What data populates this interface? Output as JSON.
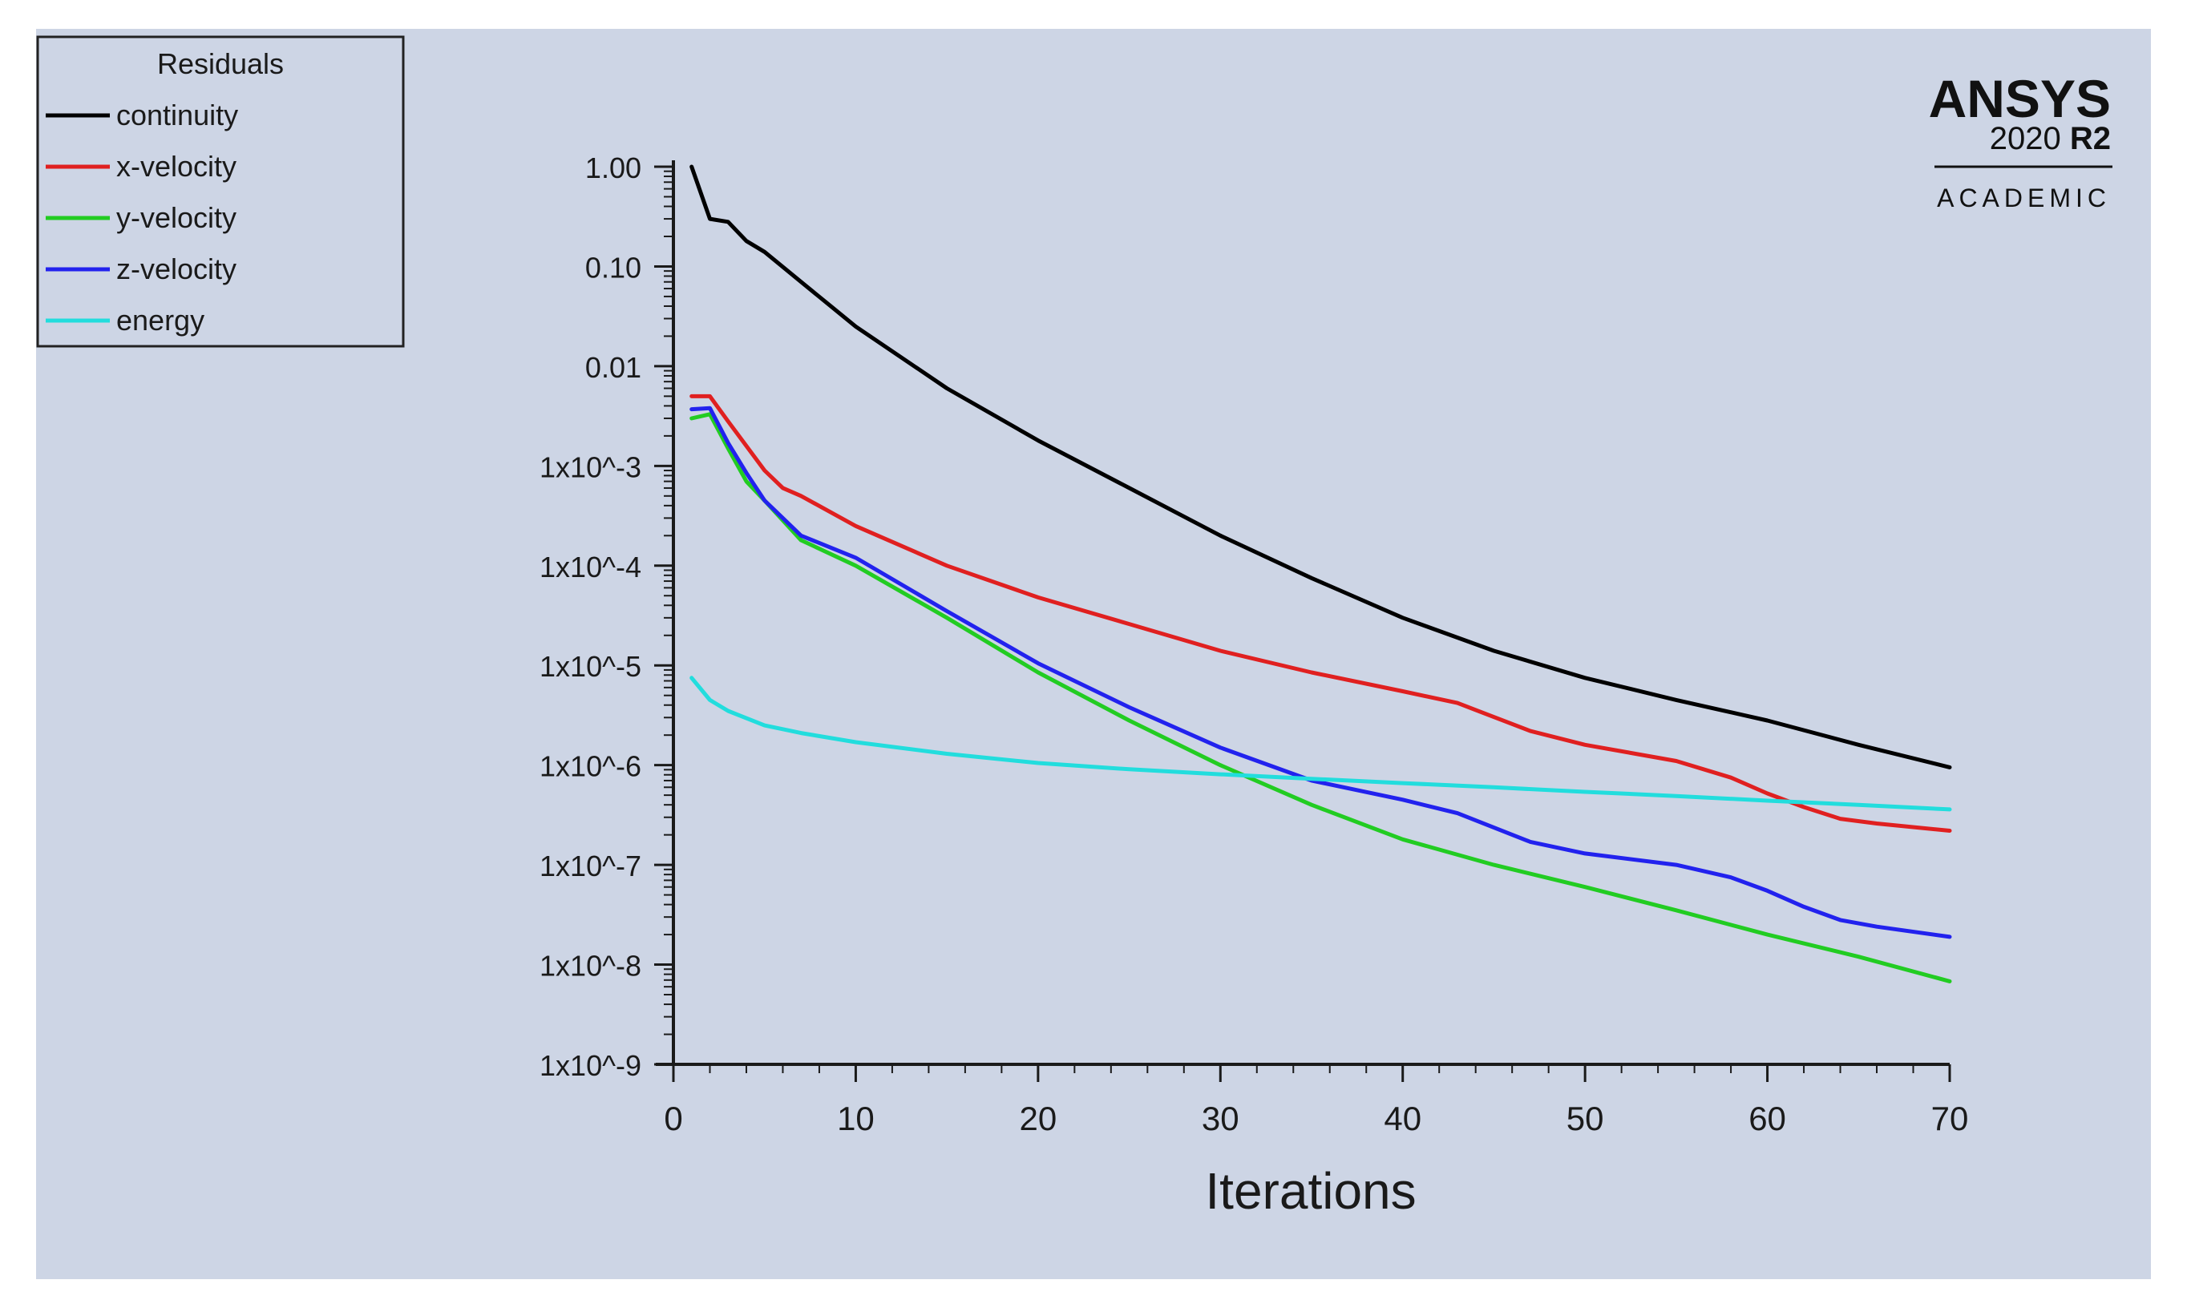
{
  "branding": {
    "name": "ANSYS",
    "version": "2020",
    "release": "R2",
    "edition": "ACADEMIC"
  },
  "legend": {
    "title": "Residuals"
  },
  "colors": {
    "background": "#cdd5e5",
    "axis": "#1a1a1a"
  },
  "chart_data": {
    "type": "line",
    "title": "Residuals",
    "xlabel": "Iterations",
    "ylabel": "",
    "yscale": "log",
    "xlim": [
      0,
      70
    ],
    "ylim": [
      1e-09,
      1
    ],
    "x_ticks": [
      0,
      10,
      20,
      30,
      40,
      50,
      60,
      70
    ],
    "x_tick_labels": [
      "0",
      "10",
      "20",
      "30",
      "40",
      "50",
      "60",
      "70"
    ],
    "y_ticks": [
      1,
      0.1,
      0.01,
      0.001,
      0.0001,
      1e-05,
      1e-06,
      1e-07,
      1e-08,
      1e-09
    ],
    "y_tick_labels": [
      "1.00",
      "0.10",
      "0.01",
      "1x10^-3",
      "1x10^-4",
      "1x10^-5",
      "1x10^-6",
      "1x10^-7",
      "1x10^-8",
      "1x10^-9"
    ],
    "legend_position": "top-left",
    "series": [
      {
        "name": "continuity",
        "color": "#000000",
        "x": [
          1,
          2,
          3,
          4,
          5,
          7,
          10,
          15,
          20,
          25,
          30,
          35,
          40,
          45,
          50,
          55,
          60,
          65,
          70
        ],
        "values": [
          1.0,
          0.3,
          0.28,
          0.18,
          0.14,
          0.07,
          0.025,
          0.006,
          0.0018,
          0.0006,
          0.0002,
          7.5e-05,
          3e-05,
          1.4e-05,
          7.5e-06,
          4.5e-06,
          2.8e-06,
          1.6e-06,
          9.5e-07
        ]
      },
      {
        "name": "x-velocity",
        "color": "#e02020",
        "x": [
          1,
          2,
          3,
          5,
          6,
          7,
          10,
          15,
          20,
          25,
          30,
          35,
          40,
          43,
          47,
          50,
          55,
          58,
          60,
          62,
          64,
          66,
          70
        ],
        "values": [
          0.005,
          0.005,
          0.0028,
          0.0009,
          0.0006,
          0.0005,
          0.00025,
          0.0001,
          4.8e-05,
          2.6e-05,
          1.4e-05,
          8.5e-06,
          5.5e-06,
          4.2e-06,
          2.2e-06,
          1.6e-06,
          1.1e-06,
          7.5e-07,
          5.2e-07,
          3.8e-07,
          2.9e-07,
          2.6e-07,
          2.2e-07
        ]
      },
      {
        "name": "y-velocity",
        "color": "#22cc22",
        "x": [
          1,
          2,
          3,
          4,
          5,
          7,
          10,
          15,
          20,
          25,
          30,
          35,
          40,
          45,
          50,
          55,
          60,
          65,
          70
        ],
        "values": [
          0.003,
          0.0033,
          0.0015,
          0.0007,
          0.00045,
          0.00018,
          0.0001,
          3e-05,
          8.5e-06,
          2.8e-06,
          1e-06,
          4e-07,
          1.8e-07,
          1e-07,
          6e-08,
          3.5e-08,
          2e-08,
          1.2e-08,
          6.8e-09
        ]
      },
      {
        "name": "z-velocity",
        "color": "#2222ee",
        "x": [
          1,
          2,
          3,
          4,
          5,
          7,
          10,
          15,
          20,
          25,
          30,
          35,
          40,
          43,
          47,
          50,
          55,
          58,
          60,
          62,
          64,
          66,
          70
        ],
        "values": [
          0.0037,
          0.0038,
          0.0017,
          0.00085,
          0.00045,
          0.0002,
          0.00012,
          3.5e-05,
          1.05e-05,
          3.8e-06,
          1.5e-06,
          7e-07,
          4.5e-07,
          3.3e-07,
          1.7e-07,
          1.3e-07,
          1e-07,
          7.5e-08,
          5.5e-08,
          3.8e-08,
          2.8e-08,
          2.4e-08,
          1.9e-08
        ]
      },
      {
        "name": "energy",
        "color": "#22dddd",
        "x": [
          1,
          2,
          3,
          5,
          7,
          10,
          15,
          20,
          25,
          30,
          35,
          40,
          45,
          50,
          55,
          60,
          65,
          70
        ],
        "values": [
          7.5e-06,
          4.5e-06,
          3.5e-06,
          2.5e-06,
          2.1e-06,
          1.7e-06,
          1.3e-06,
          1.05e-06,
          9.1e-07,
          8.1e-07,
          7.3e-07,
          6.6e-07,
          6e-07,
          5.4e-07,
          4.9e-07,
          4.4e-07,
          4e-07,
          3.6e-07
        ]
      }
    ]
  }
}
